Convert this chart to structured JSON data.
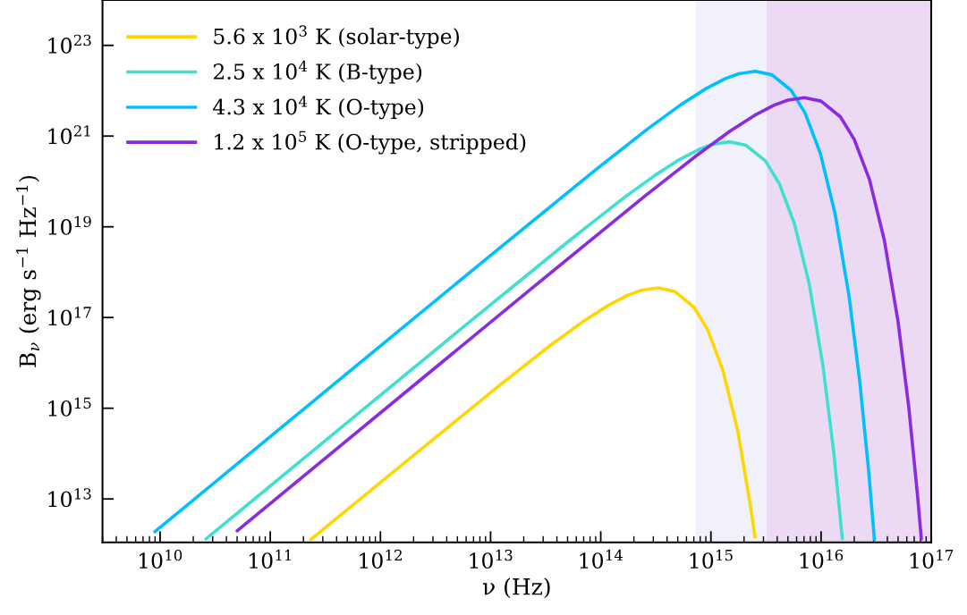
{
  "chart_data": {
    "type": "line",
    "xlabel": "ν (Hz)",
    "ylabel": "B$_{ν}$ (erg s$^{−1}$ Hz$^{−1}$)",
    "log": "xy",
    "grid": false,
    "legend": "top left",
    "marker": "none",
    "line_style": "solid",
    "xlim": [
      3000000000.0,
      1e+17
    ],
    "ylim": [
      1100000000000.0,
      1e+24
    ],
    "xticks": [
      {
        "value": 10000000000.0,
        "label": "10$^{10}$"
      },
      {
        "value": 100000000000.0,
        "label": "10$^{11}$"
      },
      {
        "value": 1000000000000.0,
        "label": "10$^{12}$"
      },
      {
        "value": 10000000000000.0,
        "label": "10$^{13}$"
      },
      {
        "value": 100000000000000.0,
        "label": "10$^{14}$"
      },
      {
        "value": 1000000000000000.0,
        "label": "10$^{15}$"
      },
      {
        "value": 1e+16,
        "label": "10$^{16}$"
      },
      {
        "value": 1e+17,
        "label": "10$^{17}$"
      }
    ],
    "yticks": [
      {
        "value": 10000000000000.0,
        "label": "10$^{13}$"
      },
      {
        "value": 1000000000000000.0,
        "label": "10$^{15}$"
      },
      {
        "value": 1e+17,
        "label": "10$^{17}$"
      },
      {
        "value": 1e+19,
        "label": "10$^{19}$"
      },
      {
        "value": 1e+21,
        "label": "10$^{21}$"
      },
      {
        "value": 1e+23,
        "label": "10$^{23}$"
      }
    ],
    "bands": [
      {
        "axis": "x",
        "from": 730000000000000.0,
        "to": 3200000000000000.0,
        "color": "#f1f1fc"
      },
      {
        "axis": "x",
        "from": 3200000000000000.0,
        "to": 1e+17,
        "color": "#ecdaf5"
      }
    ],
    "series": [
      {
        "name": "5.6 x 10$^{3}$ K (solar-type)",
        "color": "#ffd700",
        "x": [
          233000000000.0,
          1170000000000.0,
          11700000000000.0,
          35000000000000.0,
          70000000000000.0,
          117000000000000.0,
          175000000000000.0,
          233000000000000.0,
          329000000000000.0,
          467000000000000.0,
          700000000000000.0,
          933000000000000.0,
          1280000000000000.0,
          1750000000000000.0,
          2330000000000000.0,
          2450000000000000.0,
          2510000000000000.0
        ],
        "values": [
          1270000000000.0,
          31600000000000.0,
          3010000000000000.0,
          2.44e+16,
          8.34e+16,
          1.85e+17,
          3.08e+17,
          3.97e+17,
          4.51e+17,
          3.78e+17,
          1.7e+17,
          5.45e+16,
          7050000000000000.0,
          327000000000000.0,
          5220000000000.0,
          2220000000000.0,
          1450000000000.0
        ]
      },
      {
        "name": "2.5 x 10$^{4}$ K (B-type)",
        "color": "#40e0d0",
        "x": [
          26100000000.0,
          521000000000.0,
          5210000000000.0,
          52100000000000.0,
          156000000000000.0,
          313000000000000.0,
          521000000000000.0,
          782000000000000.0,
          1040000000000000.0,
          1470000000000000.0,
          2080000000000000.0,
          3130000000000000.0,
          4170000000000000.0,
          5730000000000000.0,
          7820000000000000.0,
          1.04e+16,
          1.3e+16,
          1.56e+16
        ],
        "values": [
          1310000000000.0,
          526000000000000.0,
          5.24e+16,
          5e+18,
          4.06e+19,
          1.38e+20,
          3.06e+20,
          5.11e+20,
          6.59e+20,
          7.48e+20,
          6.28e+20,
          2.82e+20,
          9.04e+19,
          1.17e+19,
          5.43e+17,
          8670000000000000.0,
          114000000000000.0,
          1330000000000.0
        ]
      },
      {
        "name": "4.3 x 10$^{4}$ K (O-type)",
        "color": "#00bfff",
        "x": [
          8950000000.0,
          895000000000.0,
          8950000000000.0,
          89500000000000.0,
          269000000000000.0,
          537000000000000.0,
          895000000000000.0,
          1340000000000000.0,
          1790000000000000.0,
          2520000000000000.0,
          3580000000000000.0,
          5370000000000000.0,
          7160000000000000.0,
          9840000000000000.0,
          1.34e+16,
          1.79e+16,
          2.24e+16,
          2.69e+16,
          3.05e+16
        ],
        "values": [
          1890000000000.0,
          1.89e+16,
          1.88e+18,
          1.79e+20,
          1.46e+21,
          4.97e+21,
          1.1e+22,
          1.83e+22,
          2.37e+22,
          2.69e+22,
          2.25e+22,
          1.01e+22,
          3.24e+21,
          4.2e+20,
          1.95e+19,
          3.11e+17,
          4100000000000000.0,
          47600000000000.0,
          1270000000000.0
        ]
      },
      {
        "name": "1.2 x 10$^{5}$ K (O-type, stripped)",
        "color": "#8a2be2",
        "x": [
          50000000000.0,
          2500000000000.0,
          25000000000000.0,
          250000000000000.0,
          750000000000000.0,
          1500000000000000.0,
          2500000000000000.0,
          3750000000000000.0,
          5000000000000000.0,
          7050000000000000.0,
          1e+16,
          1.5e+16,
          2e+16,
          2.75e+16,
          3.75e+16,
          5e+16,
          6.25e+16,
          7.5e+16,
          8e+16,
          8.13e+16
        ],
        "values": [
          1980000000000.0,
          4940000000000000.0,
          4.92e+17,
          4.7e+19,
          3.81e+20,
          1.3e+21,
          2.88e+21,
          4.8e+21,
          6.19e+21,
          7.03e+21,
          5.9e+21,
          2.65e+21,
          8.49e+20,
          1.1e+20,
          5.11e+18,
          8.15e+16,
          1070000000000000.0,
          12500000000000.0,
          2050000000000.0,
          1310000000000.0
        ]
      }
    ]
  }
}
